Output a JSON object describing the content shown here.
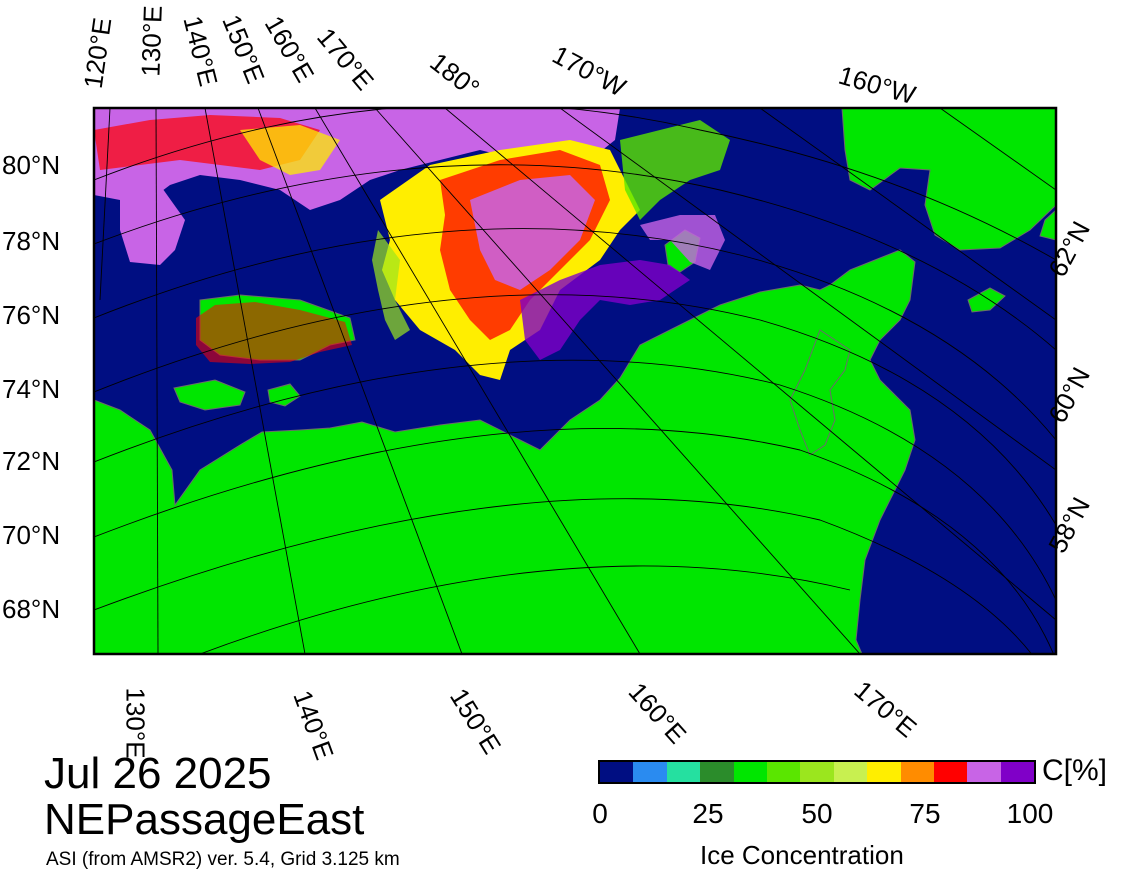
{
  "title": {
    "date": "Jul 26 2025",
    "region": "NEPassageEast",
    "source": "ASI (from AMSR2) ver. 5.4,  Grid 3.125 km"
  },
  "map": {
    "projection": "polar stereographic",
    "colors": {
      "ocean": "#000e82",
      "land": "#00e600",
      "gridline": "#000000"
    },
    "latitude_labels": [
      "80°N",
      "78°N",
      "76°N",
      "74°N",
      "72°N",
      "70°N",
      "68°N"
    ],
    "top_longitude_labels": [
      "120°E",
      "130°E",
      "140°E",
      "150°E",
      "160°E",
      "170°E",
      "180°",
      "170°W",
      "160°W"
    ],
    "bottom_longitude_labels": [
      "130°E",
      "140°E",
      "150°E",
      "160°E",
      "170°E"
    ],
    "right_latitude_labels": [
      "62°N",
      "60°N",
      "58°N"
    ]
  },
  "legend": {
    "title": "Ice Concentration",
    "unit": "C[%]",
    "ticks": [
      "0",
      "25",
      "50",
      "75",
      "100"
    ],
    "colors": [
      "#000e82",
      "#2a8bf0",
      "#25e0a0",
      "#2b8c2b",
      "#00e600",
      "#5ae600",
      "#9be61e",
      "#c8f050",
      "#ffee00",
      "#ff8c00",
      "#ff0000",
      "#c864e6",
      "#8000c8"
    ]
  }
}
